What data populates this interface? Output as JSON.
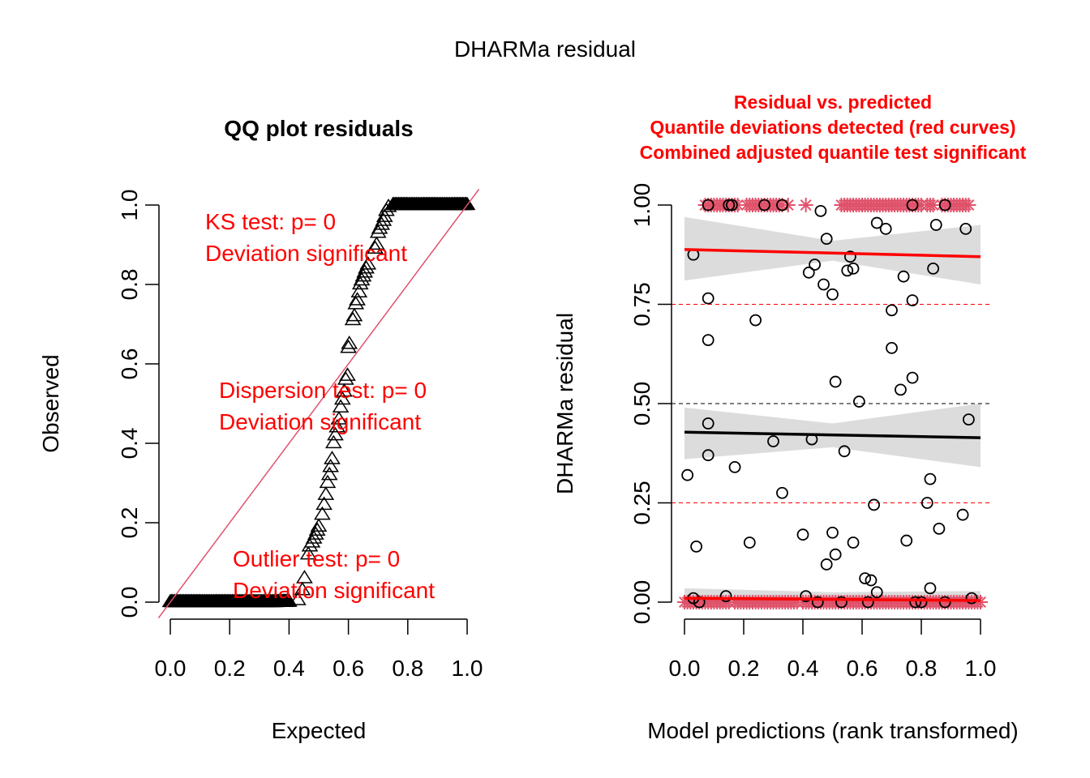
{
  "figure_title": "DHARMa residual",
  "chart_data": [
    {
      "type": "scatter",
      "panel": "left",
      "title": "QQ plot residuals",
      "xlabel": "Expected",
      "ylabel": "Observed",
      "xlim": [
        0,
        1
      ],
      "ylim": [
        0,
        1
      ],
      "xticks": [
        "0.0",
        "0.2",
        "0.4",
        "0.6",
        "0.8",
        "1.0"
      ],
      "yticks": [
        "0.0",
        "0.2",
        "0.4",
        "0.6",
        "0.8",
        "1.0"
      ],
      "marker": "triangle",
      "reference_line": {
        "from": [
          0,
          0
        ],
        "to": [
          1,
          1
        ],
        "color": "#df536b"
      },
      "observed_quantiles_description": "About 40% of points observed ~0, steep rise between expected 0.43 and 0.73, remaining ~27% observed ~1.0",
      "points": [
        [
          0.0,
          0.0
        ],
        [
          0.05,
          0.0
        ],
        [
          0.1,
          0.0
        ],
        [
          0.15,
          0.0
        ],
        [
          0.2,
          0.0
        ],
        [
          0.25,
          0.0
        ],
        [
          0.3,
          0.0
        ],
        [
          0.35,
          0.0
        ],
        [
          0.4,
          0.001
        ],
        [
          0.43,
          0.005
        ],
        [
          0.445,
          0.03
        ],
        [
          0.452,
          0.06
        ],
        [
          0.465,
          0.12
        ],
        [
          0.47,
          0.14
        ],
        [
          0.478,
          0.15
        ],
        [
          0.484,
          0.16
        ],
        [
          0.49,
          0.17
        ],
        [
          0.495,
          0.18
        ],
        [
          0.5,
          0.19
        ],
        [
          0.512,
          0.22
        ],
        [
          0.518,
          0.245
        ],
        [
          0.524,
          0.27
        ],
        [
          0.53,
          0.3
        ],
        [
          0.536,
          0.32
        ],
        [
          0.54,
          0.34
        ],
        [
          0.545,
          0.36
        ],
        [
          0.55,
          0.4
        ],
        [
          0.556,
          0.42
        ],
        [
          0.562,
          0.44
        ],
        [
          0.568,
          0.46
        ],
        [
          0.574,
          0.49
        ],
        [
          0.58,
          0.51
        ],
        [
          0.586,
          0.53
        ],
        [
          0.591,
          0.56
        ],
        [
          0.597,
          0.57
        ],
        [
          0.6,
          0.64
        ],
        [
          0.603,
          0.65
        ],
        [
          0.615,
          0.71
        ],
        [
          0.62,
          0.72
        ],
        [
          0.625,
          0.75
        ],
        [
          0.63,
          0.76
        ],
        [
          0.636,
          0.78
        ],
        [
          0.64,
          0.8
        ],
        [
          0.645,
          0.81
        ],
        [
          0.65,
          0.82
        ],
        [
          0.655,
          0.83
        ],
        [
          0.66,
          0.84
        ],
        [
          0.666,
          0.85
        ],
        [
          0.69,
          0.89
        ],
        [
          0.695,
          0.9
        ],
        [
          0.7,
          0.93
        ],
        [
          0.705,
          0.94
        ],
        [
          0.712,
          0.95
        ],
        [
          0.718,
          0.96
        ],
        [
          0.722,
          0.97
        ],
        [
          0.728,
          0.985
        ],
        [
          0.735,
          0.995
        ],
        [
          0.75,
          1.0
        ],
        [
          0.8,
          1.0
        ],
        [
          0.85,
          1.0
        ],
        [
          0.9,
          1.0
        ],
        [
          0.95,
          1.0
        ],
        [
          1.0,
          1.0
        ]
      ],
      "annotations": [
        {
          "lines": [
            "KS test: p= 0",
            "Deviation  significant"
          ],
          "color": "#ff0000"
        },
        {
          "lines": [
            "Dispersion test: p= 0",
            "Deviation  significant"
          ],
          "color": "#ff0000"
        },
        {
          "lines": [
            "Outlier test: p= 0",
            "Deviation  significant"
          ],
          "color": "#ff0000"
        }
      ]
    },
    {
      "type": "scatter",
      "panel": "right",
      "title_lines": [
        "Residual vs. predicted",
        "Quantile deviations detected (red curves)",
        "Combined adjusted quantile test significant"
      ],
      "title_color": "#ff0000",
      "xlabel": "Model predictions (rank transformed)",
      "ylabel": "DHARMa residual",
      "xlim": [
        0,
        1
      ],
      "ylim": [
        0,
        1
      ],
      "xticks": [
        "0.0",
        "0.2",
        "0.4",
        "0.6",
        "0.8",
        "1.0"
      ],
      "yticks": [
        "0.00",
        "0.25",
        "0.50",
        "0.75",
        "1.00"
      ],
      "reference_lines": [
        {
          "y": 0.25,
          "color": "#ff0000",
          "style": "dashed"
        },
        {
          "y": 0.5,
          "color": "#000000",
          "style": "dashed"
        },
        {
          "y": 0.75,
          "color": "#ff0000",
          "style": "dashed"
        }
      ],
      "quantile_fits": [
        {
          "quantile": 0.75,
          "color": "#ff0000",
          "y_at_x0": 0.888,
          "y_at_x1": 0.87,
          "band": {
            "x0": [
              0.81,
              0.97
            ],
            "xmid": [
              0.86,
              0.91
            ],
            "x1": [
              0.8,
              0.95
            ]
          }
        },
        {
          "quantile": 0.5,
          "color": "#000000",
          "y_at_x0": 0.428,
          "y_at_x1": 0.414,
          "band": {
            "x0": [
              0.36,
              0.49
            ],
            "xmid": [
              0.39,
              0.45
            ],
            "x1": [
              0.34,
              0.5
            ]
          }
        },
        {
          "quantile": 0.25,
          "color": "#ff0000",
          "y_at_x0": 0.01,
          "y_at_x1": 0.004,
          "band": {
            "x0": [
              -0.015,
              0.035
            ],
            "xmid": [
              -0.01,
              0.025
            ],
            "x1": [
              -0.012,
              0.028
            ]
          }
        }
      ],
      "band_color": "#dcdcdc",
      "circle_points": [
        [
          0.01,
          0.32
        ],
        [
          0.03,
          0.875
        ],
        [
          0.04,
          0.14
        ],
        [
          0.03,
          0.01
        ],
        [
          0.05,
          0.0
        ],
        [
          0.08,
          0.765
        ],
        [
          0.08,
          0.66
        ],
        [
          0.08,
          0.45
        ],
        [
          0.08,
          0.37
        ],
        [
          0.08,
          1.0
        ],
        [
          0.15,
          1.0
        ],
        [
          0.16,
          1.0
        ],
        [
          0.14,
          0.015
        ],
        [
          0.17,
          0.34
        ],
        [
          0.22,
          0.15
        ],
        [
          0.24,
          0.71
        ],
        [
          0.27,
          1.0
        ],
        [
          0.3,
          0.405
        ],
        [
          0.33,
          1.0
        ],
        [
          0.33,
          0.275
        ],
        [
          0.4,
          0.17
        ],
        [
          0.41,
          0.015
        ],
        [
          0.42,
          0.83
        ],
        [
          0.43,
          0.41
        ],
        [
          0.44,
          0.85
        ],
        [
          0.45,
          0.0
        ],
        [
          0.46,
          0.985
        ],
        [
          0.47,
          0.8
        ],
        [
          0.48,
          0.915
        ],
        [
          0.48,
          0.095
        ],
        [
          0.5,
          0.775
        ],
        [
          0.5,
          0.175
        ],
        [
          0.51,
          0.12
        ],
        [
          0.51,
          0.555
        ],
        [
          0.53,
          0.0
        ],
        [
          0.54,
          0.38
        ],
        [
          0.55,
          0.835
        ],
        [
          0.56,
          0.87
        ],
        [
          0.57,
          0.84
        ],
        [
          0.57,
          0.15
        ],
        [
          0.59,
          0.505
        ],
        [
          0.61,
          0.06
        ],
        [
          0.62,
          0.0
        ],
        [
          0.63,
          0.055
        ],
        [
          0.64,
          0.245
        ],
        [
          0.65,
          0.955
        ],
        [
          0.65,
          0.025
        ],
        [
          0.68,
          0.94
        ],
        [
          0.7,
          0.735
        ],
        [
          0.7,
          0.64
        ],
        [
          0.73,
          0.535
        ],
        [
          0.74,
          0.82
        ],
        [
          0.75,
          0.155
        ],
        [
          0.77,
          0.565
        ],
        [
          0.77,
          0.76
        ],
        [
          0.77,
          1.0
        ],
        [
          0.78,
          0.0
        ],
        [
          0.8,
          0.0
        ],
        [
          0.82,
          0.25
        ],
        [
          0.83,
          0.31
        ],
        [
          0.83,
          0.035
        ],
        [
          0.84,
          0.84
        ],
        [
          0.85,
          0.95
        ],
        [
          0.86,
          0.185
        ],
        [
          0.88,
          1.0
        ],
        [
          0.88,
          0.0
        ],
        [
          0.94,
          0.22
        ],
        [
          0.95,
          0.94
        ],
        [
          0.96,
          0.46
        ],
        [
          0.97,
          0.01
        ]
      ],
      "outlier_marker": "asterisk",
      "outlier_color": "#df536b",
      "outliers_top_x": [
        0.07,
        0.08,
        0.09,
        0.1,
        0.11,
        0.12,
        0.13,
        0.14,
        0.15,
        0.16,
        0.17,
        0.18,
        0.21,
        0.22,
        0.23,
        0.24,
        0.25,
        0.26,
        0.27,
        0.28,
        0.29,
        0.3,
        0.31,
        0.32,
        0.33,
        0.35,
        0.41,
        0.53,
        0.54,
        0.55,
        0.56,
        0.57,
        0.58,
        0.59,
        0.6,
        0.61,
        0.62,
        0.63,
        0.64,
        0.65,
        0.66,
        0.67,
        0.68,
        0.69,
        0.7,
        0.71,
        0.72,
        0.73,
        0.74,
        0.75,
        0.76,
        0.77,
        0.78,
        0.79,
        0.8,
        0.82,
        0.83,
        0.84,
        0.87,
        0.88,
        0.89,
        0.9,
        0.91,
        0.92,
        0.93,
        0.94,
        0.95,
        0.96
      ],
      "outliers_bottom_x": [
        0.0,
        0.01,
        0.02,
        0.03,
        0.04,
        0.05,
        0.06,
        0.07,
        0.08,
        0.09,
        0.1,
        0.11,
        0.12,
        0.13,
        0.14,
        0.15,
        0.17,
        0.18,
        0.19,
        0.2,
        0.21,
        0.22,
        0.23,
        0.24,
        0.25,
        0.26,
        0.27,
        0.28,
        0.29,
        0.3,
        0.31,
        0.32,
        0.33,
        0.34,
        0.35,
        0.36,
        0.37,
        0.38,
        0.4,
        0.41,
        0.42,
        0.43,
        0.44,
        0.45,
        0.46,
        0.47,
        0.48,
        0.49,
        0.5,
        0.51,
        0.52,
        0.53,
        0.54,
        0.55,
        0.56,
        0.57,
        0.58,
        0.59,
        0.6,
        0.61,
        0.62,
        0.63,
        0.64,
        0.65,
        0.66,
        0.67,
        0.68,
        0.69,
        0.7,
        0.71,
        0.72,
        0.73,
        0.74,
        0.75,
        0.76,
        0.77,
        0.78,
        0.79,
        0.8,
        0.81,
        0.82,
        0.83,
        0.84,
        0.85,
        0.86,
        0.87,
        0.88,
        0.89,
        0.9,
        0.91,
        0.92,
        0.93,
        0.94,
        0.95,
        0.96,
        0.97,
        0.98,
        0.99,
        1.0
      ]
    }
  ]
}
